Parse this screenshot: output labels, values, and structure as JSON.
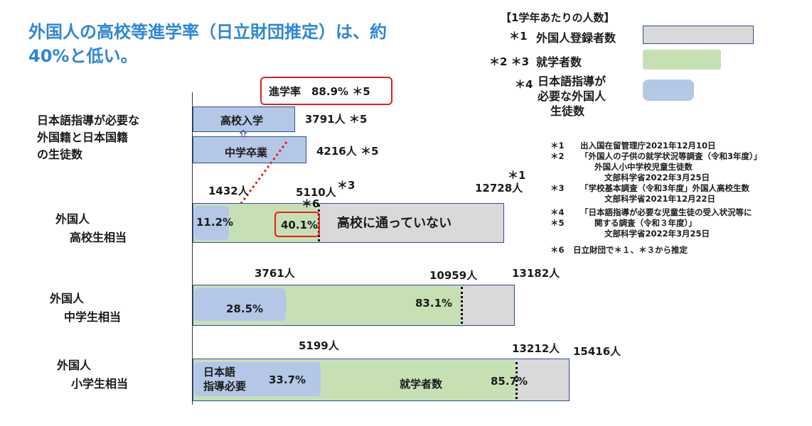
{
  "title_line1": "外国人の高校等進学率（日立財団推定）は、約",
  "title_line2": "40%と低い。",
  "legend": {
    "header": "【1学年あたりの人数】",
    "registered": {
      "mark": "＊1",
      "label": "外国人登録者数",
      "color": "#d9d9d9"
    },
    "enrolled": {
      "mark": "＊2 ＊3",
      "label": "就学者数",
      "color": "#c6e0b4"
    },
    "jsl": {
      "mark": "＊4",
      "label_lines": [
        "日本語指導が",
        "必要な外国人",
        "生徒数"
      ],
      "color": "#b4c7e7"
    }
  },
  "notes": [
    {
      "mark": "＊1",
      "text": "出入国在留管理庁2021年12月10日"
    },
    {
      "mark": "＊2",
      "text": "「外国人の子供の就学状況等調査（令和3年度）」"
    },
    {
      "mark": "",
      "text": "外国人小中学校児童生徒数"
    },
    {
      "mark": "",
      "text": "文部科学省2022年3月25日"
    },
    {
      "mark": "＊3",
      "text": "「学校基本調査（令和3年度」外国人高校生数"
    },
    {
      "mark": "",
      "text": "文部科学省2021年12月22日"
    },
    {
      "mark": "＊4",
      "text": "「日本語指導が必要な児童生徒の受入状況等に"
    },
    {
      "mark": "＊5",
      "text": "関する調査（令和３年度）」"
    },
    {
      "mark": "",
      "text": "文部科学省2022年3月25日"
    },
    {
      "mark": "＊6",
      "text": "日立財団で＊１、＊３から推定"
    }
  ],
  "chart_data": {
    "type": "bar",
    "top_group": {
      "label_lines": [
        "日本語指導が必要な",
        "外国籍と日本国籍",
        "の生徒数"
      ],
      "bars": [
        {
          "name": "高校入学",
          "value": 3791,
          "value_label": "3791人 ＊5"
        },
        {
          "name": "中学卒業",
          "value": 4216,
          "value_label": "4216人 ＊5"
        }
      ],
      "rate_label": "進学率　88.9% ＊5"
    },
    "groups": [
      {
        "label_lines": [
          "外国人",
          "高校生相当"
        ],
        "total": 12728,
        "total_label": "12728人",
        "total_mark": "＊1",
        "enrolled": 5110,
        "enrolled_label": "5110人",
        "enrolled_mark": "＊3",
        "pct_mark": "＊6",
        "jsl": 1432,
        "jsl_label": "1432人",
        "jsl_pct": "11.2%",
        "enrolled_pct": "40.1%",
        "gray_text": "高校に通っていない"
      },
      {
        "label_lines": [
          "外国人",
          "中学生相当"
        ],
        "total": 13182,
        "total_label": "13182人",
        "enrolled": 10959,
        "enrolled_label": "10959人",
        "jsl": 3761,
        "jsl_label": "3761人",
        "jsl_pct": "28.5%",
        "enrolled_pct": "83.1%"
      },
      {
        "label_lines": [
          "外国人",
          "小学生相当"
        ],
        "total": 15416,
        "total_label": "15416人",
        "enrolled": 13212,
        "enrolled_label": "13212人",
        "jsl": 5199,
        "jsl_label": "5199人",
        "jsl_pct": "33.7%",
        "enrolled_pct": "85.7%",
        "jsl_text_lines": [
          "日本語",
          "指導必要"
        ],
        "enrolled_text": "就学者数"
      }
    ]
  }
}
